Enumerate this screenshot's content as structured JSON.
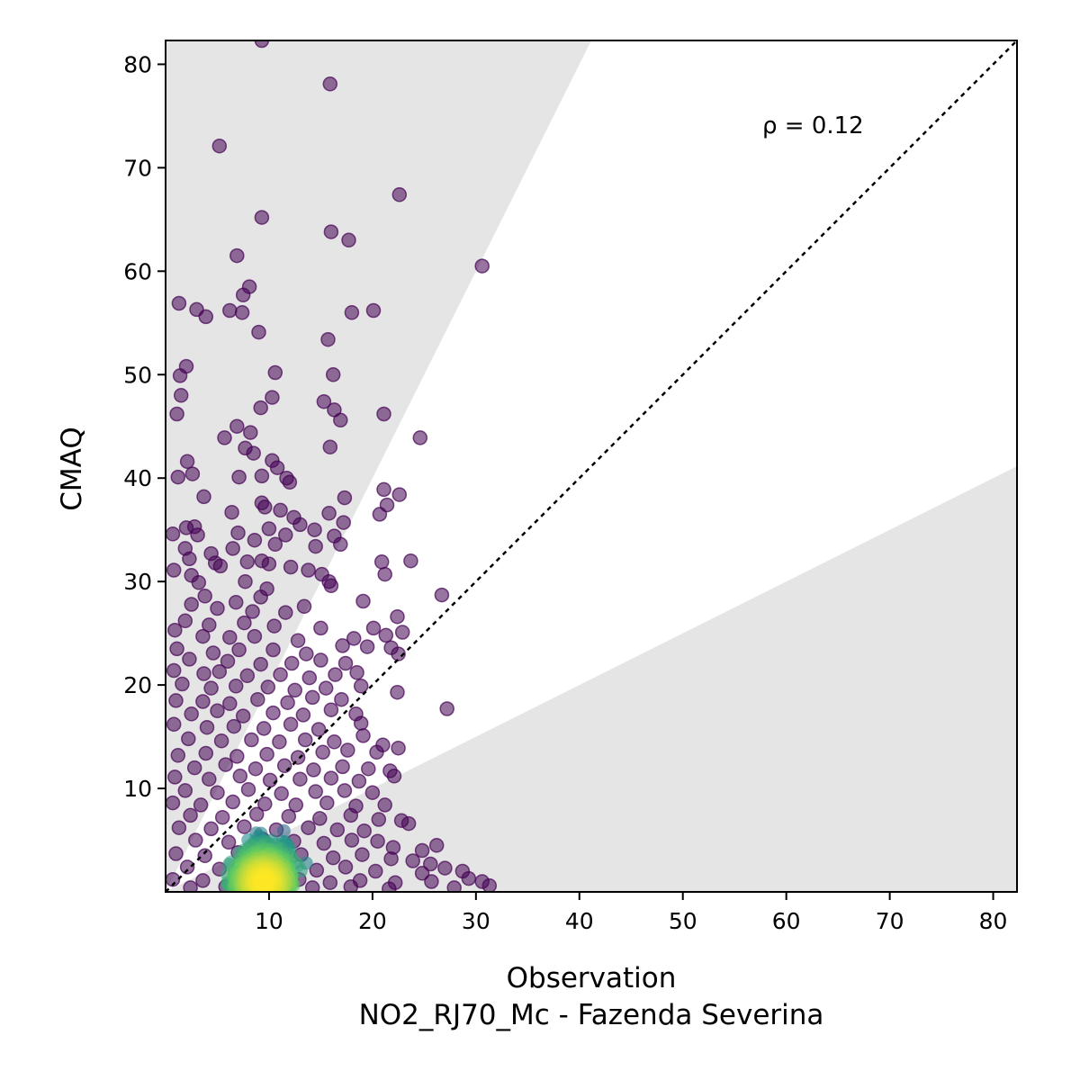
{
  "chart_data": {
    "type": "scatter",
    "title": "",
    "xlabel": "Observation",
    "xlabel2": "NO2_RJ70_Mc - Fazenda Severina",
    "ylabel": "CMAQ",
    "xlim": [
      0,
      82.3
    ],
    "ylim": [
      0,
      82.3
    ],
    "xticks": [
      10,
      20,
      30,
      40,
      50,
      60,
      70,
      80
    ],
    "yticks": [
      10,
      20,
      30,
      40,
      50,
      60,
      70,
      80
    ],
    "grid": false,
    "annotation": "ρ = 0.12",
    "reference_line": "1:1 dashed",
    "shaded_band_factor": 2,
    "colormap": "viridis",
    "colors": {
      "shade": "#e5e5e5",
      "low_density": "#440154",
      "high_density": "#fde725"
    },
    "points": [
      [
        9.3,
        82.3
      ],
      [
        15.9,
        78.1
      ],
      [
        5.2,
        72.1
      ],
      [
        22.6,
        67.4
      ],
      [
        9.3,
        65.2
      ],
      [
        16.0,
        63.8
      ],
      [
        17.7,
        63.0
      ],
      [
        6.9,
        61.5
      ],
      [
        30.6,
        60.5
      ],
      [
        8.1,
        58.5
      ],
      [
        7.5,
        57.7
      ],
      [
        1.3,
        56.9
      ],
      [
        3.0,
        56.3
      ],
      [
        3.9,
        55.6
      ],
      [
        6.2,
        56.2
      ],
      [
        7.4,
        56.0
      ],
      [
        18.0,
        56.0
      ],
      [
        20.1,
        56.2
      ],
      [
        9.0,
        54.1
      ],
      [
        15.7,
        53.4
      ],
      [
        2.0,
        50.8
      ],
      [
        1.4,
        49.9
      ],
      [
        10.6,
        50.2
      ],
      [
        16.2,
        50.0
      ],
      [
        1.5,
        48.0
      ],
      [
        10.3,
        47.8
      ],
      [
        15.3,
        47.4
      ],
      [
        9.2,
        46.8
      ],
      [
        16.3,
        46.6
      ],
      [
        1.1,
        46.2
      ],
      [
        16.9,
        45.6
      ],
      [
        21.1,
        46.2
      ],
      [
        6.9,
        45.0
      ],
      [
        8.2,
        44.4
      ],
      [
        5.7,
        43.9
      ],
      [
        24.6,
        43.9
      ],
      [
        7.7,
        42.9
      ],
      [
        15.9,
        43.0
      ],
      [
        8.5,
        42.4
      ],
      [
        2.1,
        41.6
      ],
      [
        10.3,
        41.7
      ],
      [
        10.8,
        41.0
      ],
      [
        2.6,
        40.4
      ],
      [
        1.2,
        40.1
      ],
      [
        7.1,
        40.1
      ],
      [
        9.3,
        40.2
      ],
      [
        11.7,
        40.0
      ],
      [
        12.0,
        39.6
      ],
      [
        21.1,
        38.9
      ],
      [
        22.6,
        38.4
      ],
      [
        3.7,
        38.2
      ],
      [
        17.3,
        38.1
      ],
      [
        21.4,
        37.4
      ],
      [
        9.3,
        37.6
      ],
      [
        9.6,
        37.2
      ],
      [
        20.7,
        36.5
      ],
      [
        15.8,
        36.6
      ],
      [
        6.4,
        36.7
      ],
      [
        11.1,
        36.9
      ],
      [
        12.4,
        36.2
      ],
      [
        13.0,
        35.5
      ],
      [
        17.2,
        35.7
      ],
      [
        2.0,
        35.2
      ],
      [
        2.8,
        35.3
      ],
      [
        10.0,
        35.1
      ],
      [
        14.4,
        35.0
      ],
      [
        0.7,
        34.6
      ],
      [
        3.1,
        34.5
      ],
      [
        7.0,
        34.7
      ],
      [
        11.6,
        34.5
      ],
      [
        16.3,
        34.4
      ],
      [
        8.6,
        34.0
      ],
      [
        1.9,
        33.2
      ],
      [
        4.4,
        32.7
      ],
      [
        6.5,
        33.2
      ],
      [
        10.6,
        33.6
      ],
      [
        14.5,
        33.4
      ],
      [
        16.9,
        33.6
      ],
      [
        2.3,
        32.2
      ],
      [
        4.8,
        31.8
      ],
      [
        7.9,
        31.9
      ],
      [
        9.3,
        32.0
      ],
      [
        10.0,
        31.7
      ],
      [
        20.9,
        31.9
      ],
      [
        23.7,
        32.0
      ],
      [
        0.8,
        31.1
      ],
      [
        2.5,
        30.6
      ],
      [
        5.3,
        31.5
      ],
      [
        12.1,
        31.4
      ],
      [
        13.8,
        31.1
      ],
      [
        15.1,
        30.7
      ],
      [
        21.2,
        30.7
      ],
      [
        3.2,
        29.9
      ],
      [
        7.7,
        30.0
      ],
      [
        15.8,
        30.0
      ],
      [
        9.8,
        29.3
      ],
      [
        16.0,
        29.6
      ],
      [
        3.8,
        28.6
      ],
      [
        26.7,
        28.7
      ],
      [
        9.2,
        28.5
      ],
      [
        6.8,
        28.0
      ],
      [
        19.1,
        28.1
      ],
      [
        2.5,
        27.8
      ],
      [
        5.0,
        27.4
      ],
      [
        8.4,
        27.1
      ],
      [
        11.6,
        27.0
      ],
      [
        13.4,
        27.6
      ],
      [
        22.4,
        26.6
      ],
      [
        1.9,
        26.2
      ],
      [
        4.2,
        25.8
      ],
      [
        7.6,
        26.0
      ],
      [
        10.5,
        25.7
      ],
      [
        15.0,
        25.5
      ],
      [
        20.1,
        25.5
      ],
      [
        0.9,
        25.3
      ],
      [
        3.6,
        24.7
      ],
      [
        6.2,
        24.6
      ],
      [
        8.6,
        24.7
      ],
      [
        12.8,
        24.3
      ],
      [
        18.2,
        24.5
      ],
      [
        21.3,
        24.8
      ],
      [
        22.9,
        25.1
      ],
      [
        1.1,
        23.5
      ],
      [
        4.6,
        23.1
      ],
      [
        7.1,
        23.4
      ],
      [
        10.4,
        23.4
      ],
      [
        13.6,
        23.0
      ],
      [
        17.1,
        23.8
      ],
      [
        19.5,
        23.7
      ],
      [
        21.8,
        23.6
      ],
      [
        2.3,
        22.5
      ],
      [
        6.0,
        22.3
      ],
      [
        9.2,
        22.0
      ],
      [
        12.2,
        22.1
      ],
      [
        15.0,
        22.4
      ],
      [
        17.4,
        22.1
      ],
      [
        22.5,
        23.0
      ],
      [
        0.8,
        21.4
      ],
      [
        3.7,
        21.1
      ],
      [
        5.2,
        21.3
      ],
      [
        7.9,
        20.9
      ],
      [
        11.1,
        21.0
      ],
      [
        13.9,
        20.7
      ],
      [
        16.4,
        21.0
      ],
      [
        18.5,
        21.2
      ],
      [
        1.6,
        20.1
      ],
      [
        4.4,
        19.7
      ],
      [
        6.8,
        19.9
      ],
      [
        9.9,
        19.8
      ],
      [
        12.5,
        19.5
      ],
      [
        15.5,
        19.7
      ],
      [
        18.9,
        19.9
      ],
      [
        22.4,
        19.3
      ],
      [
        1.0,
        18.5
      ],
      [
        3.6,
        18.4
      ],
      [
        6.2,
        18.2
      ],
      [
        8.9,
        18.6
      ],
      [
        11.8,
        18.3
      ],
      [
        14.2,
        18.8
      ],
      [
        17.0,
        18.6
      ],
      [
        27.2,
        17.7
      ],
      [
        2.5,
        17.2
      ],
      [
        5.0,
        17.5
      ],
      [
        7.5,
        17.0
      ],
      [
        10.4,
        17.3
      ],
      [
        13.3,
        17.1
      ],
      [
        16.0,
        17.6
      ],
      [
        18.4,
        17.2
      ],
      [
        0.8,
        16.2
      ],
      [
        4.0,
        15.9
      ],
      [
        6.6,
        16.0
      ],
      [
        9.5,
        15.8
      ],
      [
        12.1,
        16.2
      ],
      [
        14.8,
        15.7
      ],
      [
        18.9,
        16.3
      ],
      [
        19.1,
        15.1
      ],
      [
        2.2,
        14.8
      ],
      [
        5.4,
        14.6
      ],
      [
        8.3,
        14.7
      ],
      [
        11.0,
        14.5
      ],
      [
        13.5,
        14.7
      ],
      [
        16.3,
        14.5
      ],
      [
        21.0,
        14.2
      ],
      [
        22.5,
        13.9
      ],
      [
        1.2,
        13.2
      ],
      [
        3.9,
        13.4
      ],
      [
        6.9,
        13.1
      ],
      [
        9.8,
        13.3
      ],
      [
        12.8,
        13.0
      ],
      [
        15.2,
        13.5
      ],
      [
        17.6,
        13.7
      ],
      [
        20.4,
        13.5
      ],
      [
        2.8,
        12.0
      ],
      [
        5.8,
        12.3
      ],
      [
        8.7,
        11.9
      ],
      [
        11.5,
        12.2
      ],
      [
        14.3,
        11.8
      ],
      [
        17.1,
        12.1
      ],
      [
        19.6,
        11.9
      ],
      [
        21.7,
        11.7
      ],
      [
        0.9,
        11.1
      ],
      [
        4.2,
        10.9
      ],
      [
        7.2,
        11.2
      ],
      [
        10.1,
        10.8
      ],
      [
        13.0,
        10.9
      ],
      [
        16.0,
        11.0
      ],
      [
        18.7,
        10.7
      ],
      [
        22.1,
        11.2
      ],
      [
        1.9,
        9.8
      ],
      [
        5.0,
        9.6
      ],
      [
        8.0,
        9.9
      ],
      [
        11.2,
        9.5
      ],
      [
        14.5,
        9.7
      ],
      [
        17.3,
        9.8
      ],
      [
        20.0,
        9.6
      ],
      [
        0.7,
        8.6
      ],
      [
        3.4,
        8.4
      ],
      [
        6.5,
        8.7
      ],
      [
        9.6,
        8.5
      ],
      [
        12.6,
        8.4
      ],
      [
        15.6,
        8.6
      ],
      [
        18.4,
        8.3
      ],
      [
        21.2,
        8.4
      ],
      [
        2.4,
        7.4
      ],
      [
        5.5,
        7.2
      ],
      [
        8.8,
        7.5
      ],
      [
        11.9,
        7.3
      ],
      [
        14.9,
        7.1
      ],
      [
        17.9,
        7.4
      ],
      [
        20.6,
        7.0
      ],
      [
        22.8,
        6.9
      ],
      [
        1.3,
        6.2
      ],
      [
        4.4,
        6.1
      ],
      [
        7.6,
        6.3
      ],
      [
        10.7,
        6.0
      ],
      [
        13.8,
        6.2
      ],
      [
        16.6,
        6.0
      ],
      [
        19.2,
        5.9
      ],
      [
        23.5,
        6.6
      ],
      [
        2.9,
        5.0
      ],
      [
        6.1,
        4.8
      ],
      [
        9.4,
        5.1
      ],
      [
        12.4,
        4.9
      ],
      [
        15.3,
        4.7
      ],
      [
        18.0,
        5.0
      ],
      [
        20.5,
        4.9
      ],
      [
        22.0,
        4.3
      ],
      [
        24.8,
        4.0
      ],
      [
        26.2,
        4.5
      ],
      [
        1.0,
        3.7
      ],
      [
        3.8,
        3.5
      ],
      [
        7.0,
        3.8
      ],
      [
        10.0,
        3.4
      ],
      [
        13.1,
        3.6
      ],
      [
        16.2,
        3.3
      ],
      [
        19.0,
        3.6
      ],
      [
        21.8,
        3.2
      ],
      [
        23.9,
        3.0
      ],
      [
        25.6,
        2.7
      ],
      [
        2.1,
        2.4
      ],
      [
        5.2,
        2.2
      ],
      [
        8.3,
        2.5
      ],
      [
        11.5,
        2.3
      ],
      [
        14.6,
        2.1
      ],
      [
        17.4,
        2.4
      ],
      [
        20.3,
        2.0
      ],
      [
        24.8,
        1.8
      ],
      [
        27.0,
        2.3
      ],
      [
        28.7,
        2.0
      ],
      [
        0.7,
        1.2
      ],
      [
        3.6,
        1.1
      ],
      [
        6.7,
        1.4
      ],
      [
        9.8,
        1.0
      ],
      [
        12.9,
        1.2
      ],
      [
        15.9,
        0.9
      ],
      [
        18.8,
        1.1
      ],
      [
        22.2,
        0.9
      ],
      [
        25.7,
        1.0
      ],
      [
        29.3,
        1.3
      ],
      [
        30.6,
        1.0
      ],
      [
        31.3,
        0.6
      ],
      [
        2.4,
        0.4
      ],
      [
        5.8,
        0.5
      ],
      [
        10.8,
        0.3
      ],
      [
        14.2,
        0.4
      ],
      [
        17.9,
        0.5
      ],
      [
        21.6,
        0.3
      ],
      [
        27.9,
        0.4
      ]
    ]
  }
}
